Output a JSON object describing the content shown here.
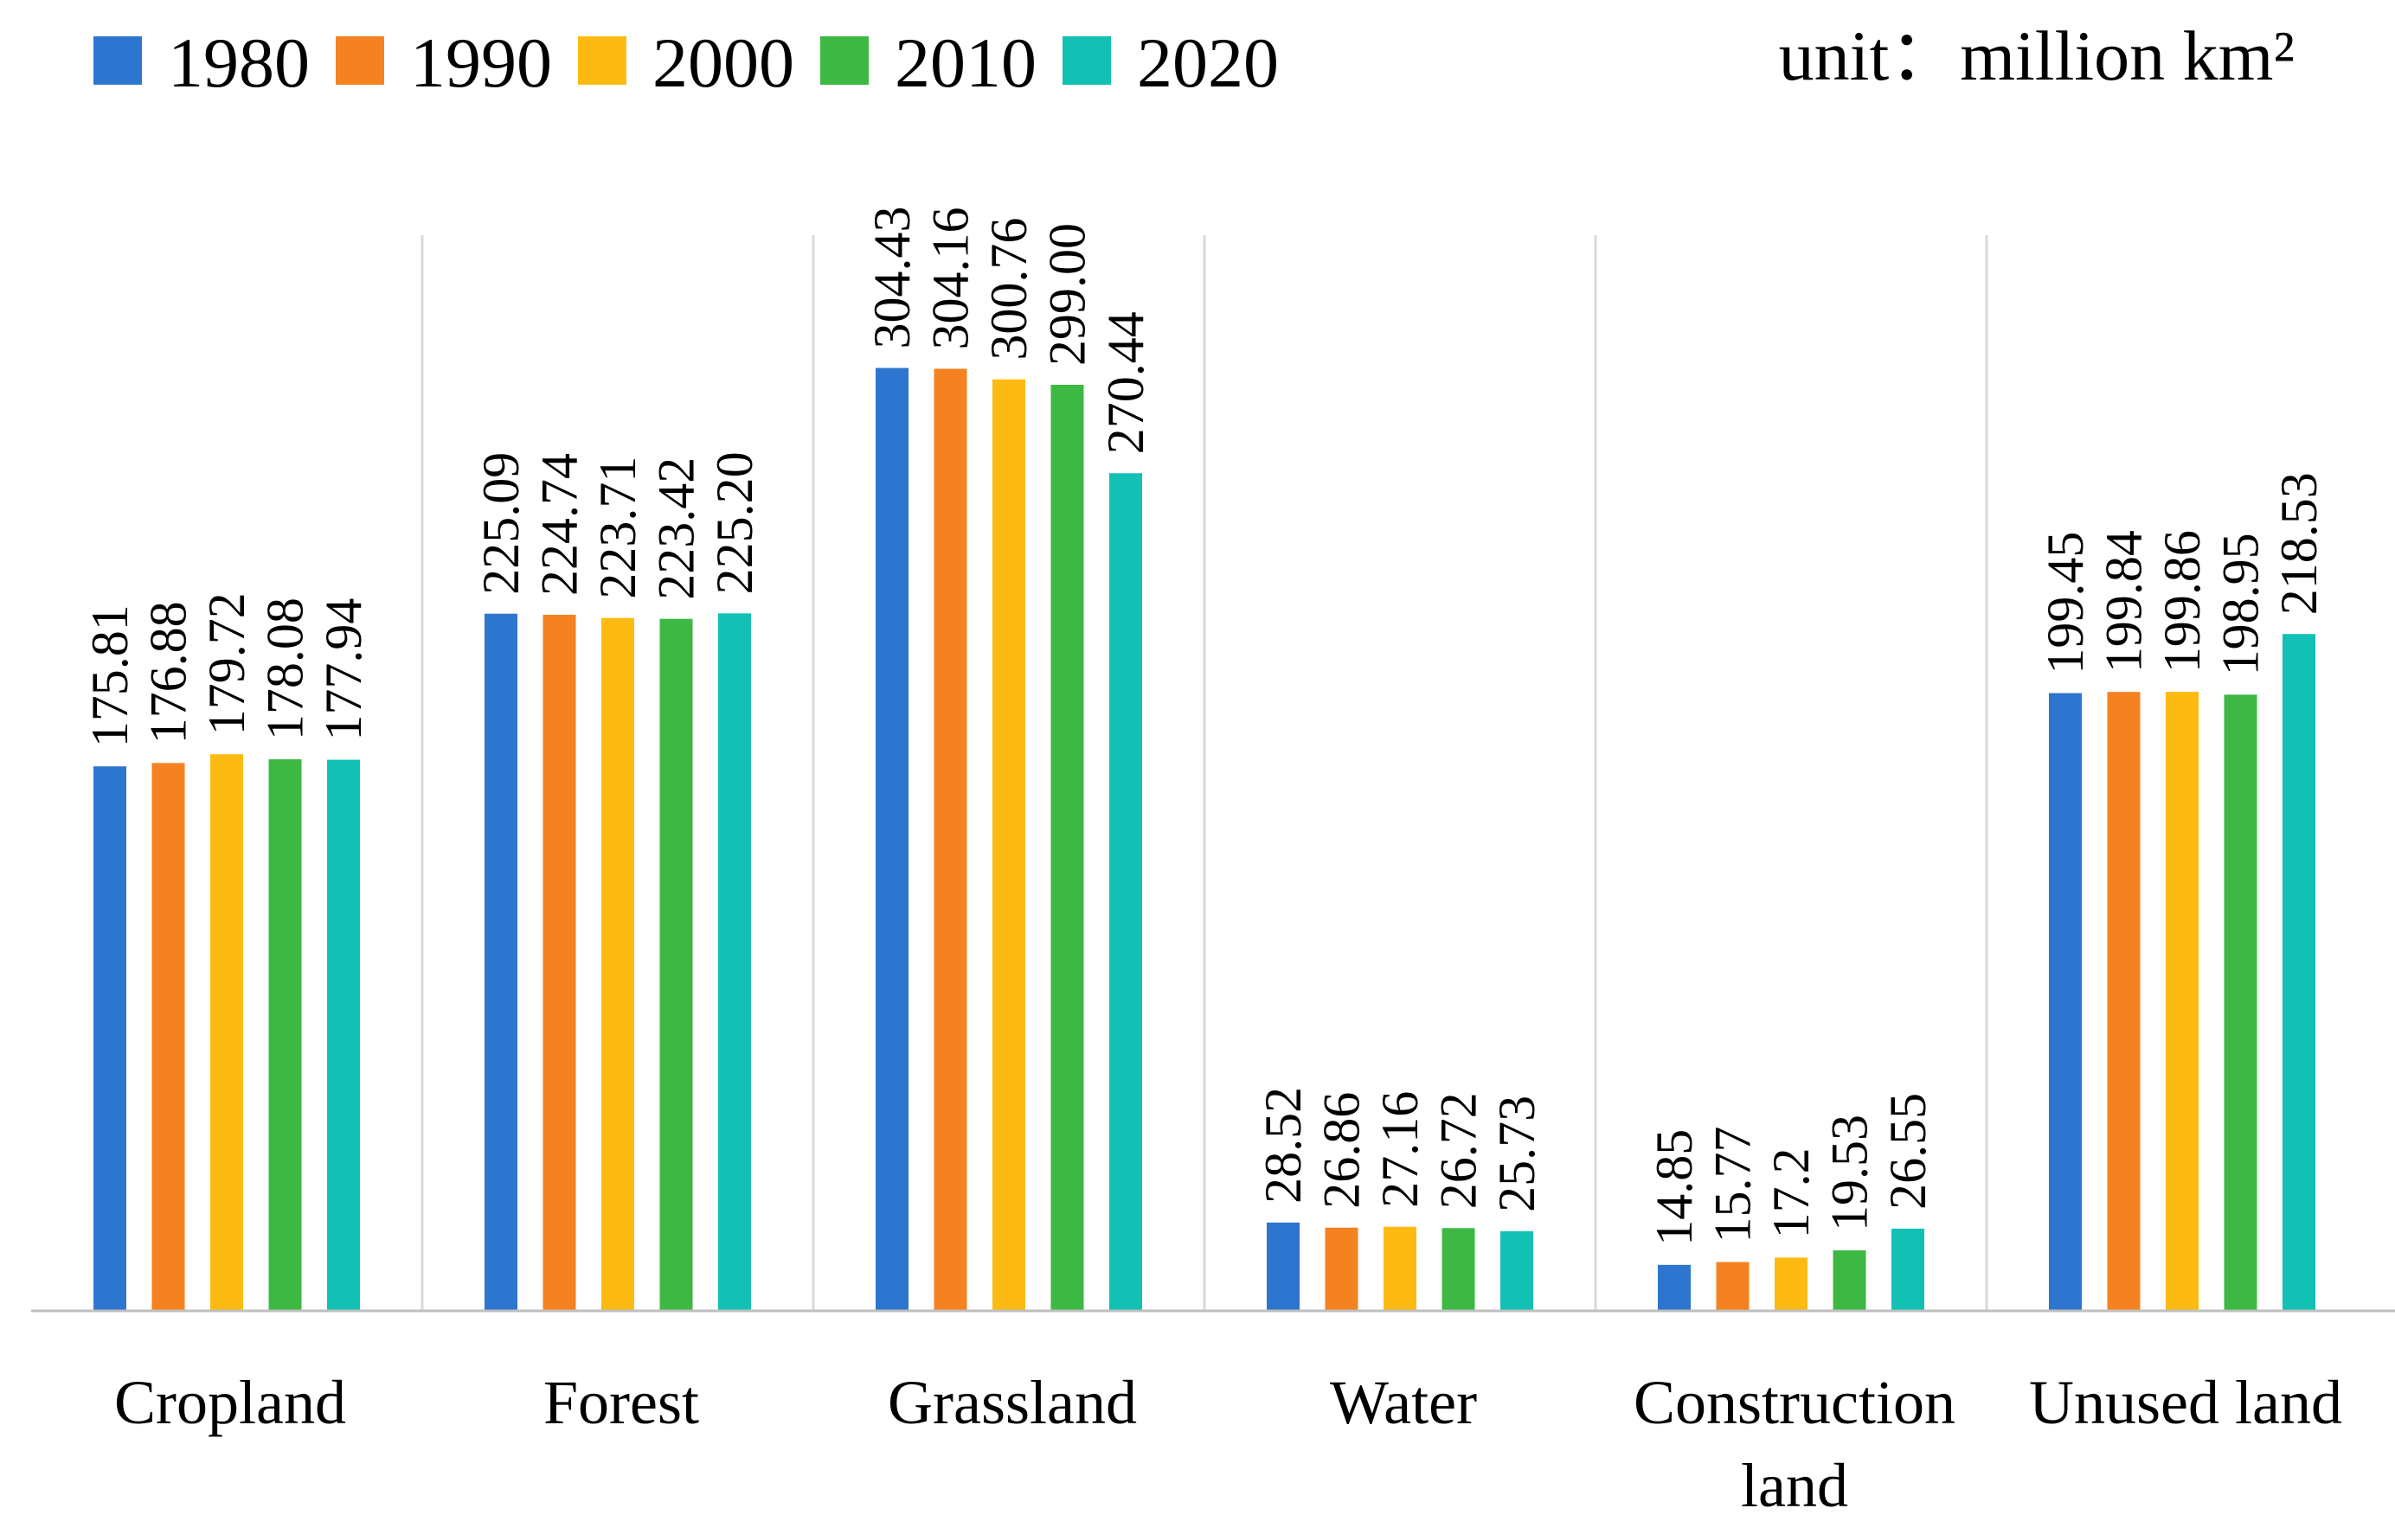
{
  "chart_data": {
    "type": "bar",
    "title": "",
    "unit_label": "unit：million km²",
    "xlabel": "",
    "ylabel": "",
    "ylim": [
      0,
      350
    ],
    "grid": false,
    "legend_position": "top-left",
    "categories": [
      [
        "Cropland"
      ],
      [
        "Forest"
      ],
      [
        "Grassland"
      ],
      [
        "Water"
      ],
      [
        "Construction",
        "land"
      ],
      [
        "Unused land"
      ]
    ],
    "series": [
      {
        "name": "1980",
        "color": "#2E75CF",
        "values": [
          175.81,
          225.09,
          304.43,
          28.52,
          14.85,
          199.45
        ],
        "labels": [
          "175.81",
          "225.09",
          "304.43",
          "28.52",
          "14.85",
          "199.45"
        ]
      },
      {
        "name": "1990",
        "color": "#F58220",
        "values": [
          176.88,
          224.74,
          304.16,
          26.86,
          15.77,
          199.84
        ],
        "labels": [
          "176.88",
          "224.74",
          "304.16",
          "26.86",
          "15.77",
          "199.84"
        ]
      },
      {
        "name": "2000",
        "color": "#FDBA12",
        "values": [
          179.72,
          223.71,
          300.76,
          27.16,
          17.2,
          199.86
        ],
        "labels": [
          "179.72",
          "223.71",
          "300.76",
          "27.16",
          "17.2",
          "199.86"
        ]
      },
      {
        "name": "2010",
        "color": "#3DB843",
        "values": [
          178.08,
          223.42,
          299.0,
          26.72,
          19.53,
          198.95
        ],
        "labels": [
          "178.08",
          "223.42",
          "299.00",
          "26.72",
          "19.53",
          "198.95"
        ]
      },
      {
        "name": "2020",
        "color": "#12C1B4",
        "values": [
          177.94,
          225.2,
          270.44,
          25.73,
          26.55,
          218.53
        ],
        "labels": [
          "177.94",
          "225.20",
          "270.44",
          "25.73",
          "26.55",
          "218.53"
        ]
      }
    ]
  }
}
